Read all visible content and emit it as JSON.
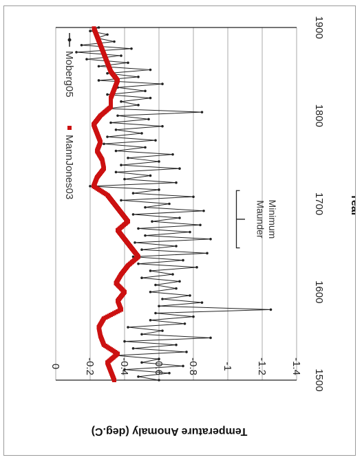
{
  "chart_data": {
    "type": "line",
    "xlabel": "Year",
    "ylabel": "Temperature Anomaly (deg.C)",
    "xlim": [
      1500,
      1900
    ],
    "ylim": [
      -1.4,
      0
    ],
    "x_ticks": [
      "1500",
      "1600",
      "1700",
      "1800",
      "1900"
    ],
    "y_ticks": [
      "0",
      "-0.2",
      "-0.4",
      "-0.6",
      "-0.8",
      "-1",
      "-1.2",
      "-1.4"
    ],
    "grid": "horizontal",
    "orientation": "rotated 180°",
    "legend": [
      {
        "name": "Moberg05",
        "color": "#222222",
        "marker": "line with dots"
      },
      {
        "name": "MannJones03",
        "color": "#cc1111",
        "marker": "square"
      }
    ],
    "annotation": {
      "line1": "Maunder",
      "line2": "Minimum",
      "range": [
        1650,
        1715
      ]
    },
    "series": [
      {
        "name": "Moberg05",
        "color": "#222222",
        "x": [
          1500,
          1504,
          1508,
          1512,
          1516,
          1520,
          1524,
          1528,
          1532,
          1536,
          1540,
          1544,
          1548,
          1552,
          1556,
          1560,
          1564,
          1568,
          1572,
          1576,
          1580,
          1584,
          1588,
          1592,
          1596,
          1600,
          1604,
          1608,
          1612,
          1616,
          1620,
          1624,
          1628,
          1632,
          1636,
          1640,
          1644,
          1648,
          1652,
          1656,
          1660,
          1664,
          1668,
          1672,
          1676,
          1680,
          1684,
          1688,
          1692,
          1696,
          1700,
          1704,
          1708,
          1712,
          1716,
          1720,
          1724,
          1728,
          1732,
          1736,
          1740,
          1744,
          1748,
          1752,
          1756,
          1760,
          1764,
          1768,
          1772,
          1776,
          1780,
          1784,
          1788,
          1792,
          1796,
          1800,
          1804,
          1808,
          1812,
          1816,
          1820,
          1824,
          1828,
          1832,
          1836,
          1840,
          1844,
          1848,
          1852,
          1856,
          1860,
          1864,
          1868,
          1872,
          1876,
          1880,
          1884,
          1888,
          1892,
          1896,
          1900
        ],
        "values": [
          -0.6,
          -0.48,
          -0.66,
          -0.4,
          -0.74,
          -0.5,
          -0.6,
          -0.35,
          -0.76,
          -0.45,
          -0.7,
          -0.4,
          -0.9,
          -0.5,
          -0.62,
          -0.42,
          -0.75,
          -0.55,
          -0.8,
          -0.58,
          -1.25,
          -0.6,
          -0.85,
          -0.62,
          -0.78,
          -0.55,
          -0.7,
          -0.58,
          -0.72,
          -0.5,
          -0.68,
          -0.55,
          -0.82,
          -0.48,
          -0.74,
          -0.45,
          -0.88,
          -0.5,
          -0.7,
          -0.46,
          -0.9,
          -0.52,
          -0.78,
          -0.48,
          -0.84,
          -0.56,
          -0.72,
          -0.45,
          -0.86,
          -0.52,
          -0.66,
          -0.38,
          -0.8,
          -0.45,
          -0.6,
          -0.2,
          -0.7,
          -0.4,
          -0.55,
          -0.35,
          -0.72,
          -0.38,
          -0.6,
          -0.42,
          -0.68,
          -0.35,
          -0.52,
          -0.28,
          -0.58,
          -0.3,
          -0.5,
          -0.35,
          -0.62,
          -0.32,
          -0.54,
          -0.36,
          -0.85,
          -0.3,
          -0.48,
          -0.38,
          -0.55,
          -0.3,
          -0.52,
          -0.36,
          -0.62,
          -0.25,
          -0.48,
          -0.3,
          -0.55,
          -0.25,
          -0.42,
          -0.18,
          -0.38,
          -0.12,
          -0.44,
          -0.15,
          -0.34,
          -0.24,
          -0.3,
          -0.2,
          -0.25
        ]
      },
      {
        "name": "MannJones03",
        "color": "#cc1111",
        "x": [
          1500,
          1510,
          1520,
          1530,
          1540,
          1550,
          1560,
          1570,
          1580,
          1590,
          1600,
          1610,
          1620,
          1630,
          1640,
          1650,
          1660,
          1670,
          1680,
          1690,
          1700,
          1710,
          1720,
          1730,
          1740,
          1750,
          1760,
          1770,
          1780,
          1790,
          1800,
          1810,
          1820,
          1830,
          1840,
          1850,
          1860,
          1870,
          1880,
          1890,
          1900
        ],
        "values": [
          -0.34,
          -0.32,
          -0.3,
          -0.36,
          -0.28,
          -0.26,
          -0.25,
          -0.28,
          -0.38,
          -0.36,
          -0.4,
          -0.35,
          -0.38,
          -0.42,
          -0.48,
          -0.44,
          -0.4,
          -0.36,
          -0.42,
          -0.38,
          -0.34,
          -0.3,
          -0.22,
          -0.24,
          -0.28,
          -0.27,
          -0.24,
          -0.26,
          -0.24,
          -0.22,
          -0.26,
          -0.32,
          -0.32,
          -0.34,
          -0.36,
          -0.32,
          -0.3,
          -0.28,
          -0.26,
          -0.24,
          -0.22
        ]
      }
    ]
  }
}
